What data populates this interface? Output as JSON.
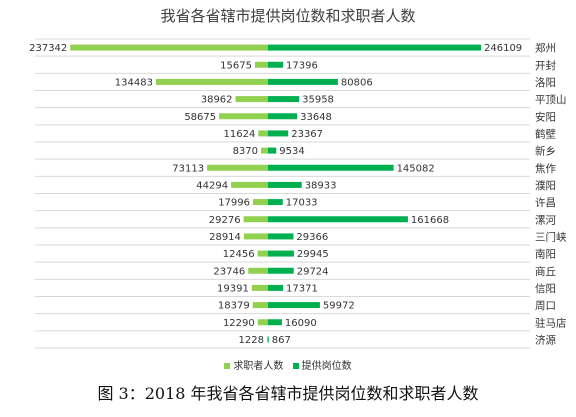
{
  "chart_data": {
    "type": "bar",
    "orientation": "horizontal-diverging",
    "title": "我省各省辖市提供岗位数和求职者人数",
    "categories": [
      "郑州",
      "开封",
      "洛阳",
      "平顶山",
      "安阳",
      "鹤壁",
      "新乡",
      "焦作",
      "濮阳",
      "许昌",
      "漯河",
      "三门峡",
      "南阳",
      "商丘",
      "信阳",
      "周口",
      "驻马店",
      "济源"
    ],
    "series": [
      {
        "name": "求职者人数",
        "direction": "left",
        "color": "#92d050",
        "values": [
          237342,
          15675,
          134483,
          38962,
          58675,
          11624,
          8370,
          73113,
          44294,
          17996,
          29276,
          28914,
          12456,
          23746,
          19391,
          18379,
          12290,
          1228
        ]
      },
      {
        "name": "提供岗位数",
        "direction": "right",
        "color": "#00b050",
        "values": [
          246109,
          17396,
          80806,
          35958,
          33648,
          23367,
          9534,
          145082,
          38933,
          17033,
          161668,
          29366,
          29945,
          29724,
          17371,
          59972,
          16090,
          867
        ]
      }
    ],
    "grid": true,
    "legend_position": "bottom"
  },
  "caption": "图 3：2018 年我省各省辖市提供岗位数和求职者人数"
}
